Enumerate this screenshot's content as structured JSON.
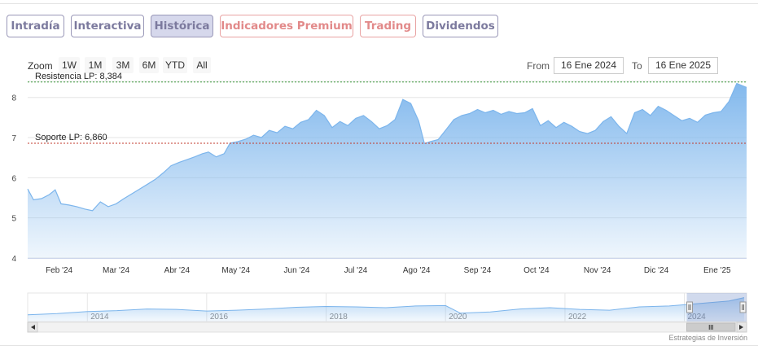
{
  "tabs": [
    {
      "label": "Intradía",
      "style": "normal"
    },
    {
      "label": "Interactiva",
      "style": "normal"
    },
    {
      "label": "Histórica",
      "style": "active"
    },
    {
      "label": "Indicadores Premium",
      "style": "premium"
    },
    {
      "label": "Trading",
      "style": "premium"
    },
    {
      "label": "Dividendos",
      "style": "normal"
    }
  ],
  "zoom": {
    "label": "Zoom",
    "buttons": [
      "1W",
      "1M",
      "3M",
      "6M",
      "YTD",
      "All"
    ]
  },
  "range": {
    "from_label": "From",
    "from_value": "16 Ene 2024",
    "to_label": "To",
    "to_value": "16 Ene 2025"
  },
  "credit": "Estrategias de Inversión",
  "colors": {
    "tab_border": "#9a98b8",
    "tab_text": "#7c7a9e",
    "premium": "#e28a8a",
    "area_line": "#7cb5ec",
    "resistance": "#3a9a3a",
    "support": "#c0392b"
  },
  "chart_data": {
    "type": "area",
    "ylim": [
      4,
      8.4
    ],
    "y_ticks": [
      "4",
      "5",
      "6",
      "7",
      "8"
    ],
    "x_tick_labels": [
      "Feb '24",
      "Mar '24",
      "Abr '24",
      "May '24",
      "Jun '24",
      "Jul '24",
      "Ago '24",
      "Sep '24",
      "Oct '24",
      "Nov '24",
      "Dic '24",
      "Ene '25"
    ],
    "date_range": [
      "2024-01-16",
      "2025-01-16"
    ],
    "series": [
      {
        "points": [
          [
            "2024-01-16",
            5.72
          ],
          [
            "2024-01-19",
            5.45
          ],
          [
            "2024-01-23",
            5.48
          ],
          [
            "2024-01-27",
            5.58
          ],
          [
            "2024-01-30",
            5.7
          ],
          [
            "2024-02-02",
            5.35
          ],
          [
            "2024-02-06",
            5.32
          ],
          [
            "2024-02-10",
            5.28
          ],
          [
            "2024-02-14",
            5.22
          ],
          [
            "2024-02-18",
            5.18
          ],
          [
            "2024-02-22",
            5.4
          ],
          [
            "2024-02-26",
            5.28
          ],
          [
            "2024-03-01",
            5.35
          ],
          [
            "2024-03-05",
            5.48
          ],
          [
            "2024-03-09",
            5.6
          ],
          [
            "2024-03-13",
            5.72
          ],
          [
            "2024-03-17",
            5.84
          ],
          [
            "2024-03-21",
            5.96
          ],
          [
            "2024-03-25",
            6.12
          ],
          [
            "2024-03-29",
            6.3
          ],
          [
            "2024-04-02",
            6.38
          ],
          [
            "2024-04-06",
            6.45
          ],
          [
            "2024-04-10",
            6.52
          ],
          [
            "2024-04-14",
            6.6
          ],
          [
            "2024-04-17",
            6.64
          ],
          [
            "2024-04-21",
            6.52
          ],
          [
            "2024-04-25",
            6.6
          ],
          [
            "2024-04-28",
            6.86
          ],
          [
            "2024-05-02",
            6.9
          ],
          [
            "2024-05-06",
            6.96
          ],
          [
            "2024-05-10",
            7.06
          ],
          [
            "2024-05-14",
            7.0
          ],
          [
            "2024-05-18",
            7.18
          ],
          [
            "2024-05-22",
            7.12
          ],
          [
            "2024-05-26",
            7.28
          ],
          [
            "2024-05-30",
            7.22
          ],
          [
            "2024-06-03",
            7.38
          ],
          [
            "2024-06-07",
            7.45
          ],
          [
            "2024-06-11",
            7.68
          ],
          [
            "2024-06-15",
            7.55
          ],
          [
            "2024-06-19",
            7.25
          ],
          [
            "2024-06-23",
            7.4
          ],
          [
            "2024-06-27",
            7.3
          ],
          [
            "2024-07-01",
            7.48
          ],
          [
            "2024-07-05",
            7.55
          ],
          [
            "2024-07-09",
            7.4
          ],
          [
            "2024-07-13",
            7.22
          ],
          [
            "2024-07-17",
            7.3
          ],
          [
            "2024-07-21",
            7.45
          ],
          [
            "2024-07-25",
            7.95
          ],
          [
            "2024-07-29",
            7.85
          ],
          [
            "2024-08-02",
            7.42
          ],
          [
            "2024-08-05",
            6.85
          ],
          [
            "2024-08-08",
            6.9
          ],
          [
            "2024-08-12",
            6.95
          ],
          [
            "2024-08-16",
            7.2
          ],
          [
            "2024-08-20",
            7.45
          ],
          [
            "2024-08-24",
            7.55
          ],
          [
            "2024-08-28",
            7.6
          ],
          [
            "2024-09-01",
            7.7
          ],
          [
            "2024-09-05",
            7.62
          ],
          [
            "2024-09-09",
            7.68
          ],
          [
            "2024-09-13",
            7.58
          ],
          [
            "2024-09-17",
            7.65
          ],
          [
            "2024-09-21",
            7.6
          ],
          [
            "2024-09-25",
            7.62
          ],
          [
            "2024-09-29",
            7.72
          ],
          [
            "2024-10-03",
            7.3
          ],
          [
            "2024-10-07",
            7.42
          ],
          [
            "2024-10-11",
            7.25
          ],
          [
            "2024-10-15",
            7.38
          ],
          [
            "2024-10-19",
            7.28
          ],
          [
            "2024-10-23",
            7.15
          ],
          [
            "2024-10-27",
            7.1
          ],
          [
            "2024-10-31",
            7.18
          ],
          [
            "2024-11-04",
            7.4
          ],
          [
            "2024-11-08",
            7.52
          ],
          [
            "2024-11-12",
            7.28
          ],
          [
            "2024-11-16",
            7.1
          ],
          [
            "2024-11-20",
            7.62
          ],
          [
            "2024-11-24",
            7.7
          ],
          [
            "2024-11-28",
            7.55
          ],
          [
            "2024-12-02",
            7.78
          ],
          [
            "2024-12-06",
            7.68
          ],
          [
            "2024-12-10",
            7.55
          ],
          [
            "2024-12-14",
            7.42
          ],
          [
            "2024-12-18",
            7.48
          ],
          [
            "2024-12-22",
            7.38
          ],
          [
            "2024-12-26",
            7.56
          ],
          [
            "2024-12-30",
            7.62
          ],
          [
            "2025-01-03",
            7.65
          ],
          [
            "2025-01-07",
            7.9
          ],
          [
            "2025-01-11",
            8.35
          ],
          [
            "2025-01-16",
            8.25
          ]
        ]
      }
    ],
    "plot_lines": [
      {
        "label": "Resistencia LP: 8,384",
        "value": 8.384
      },
      {
        "label": "Soporte LP: 6,860",
        "value": 6.86
      }
    ],
    "navigator": {
      "x_tick_labels": [
        "2014",
        "2016",
        "2018",
        "2020",
        "2022",
        "2024"
      ],
      "range": [
        "2013-01-01",
        "2025-01-16"
      ],
      "selected_range": [
        "2024-01-16",
        "2025-01-16"
      ],
      "points": [
        [
          "2013-01",
          4.2
        ],
        [
          "2013-07",
          4.5
        ],
        [
          "2014-01",
          5.0
        ],
        [
          "2014-07",
          5.2
        ],
        [
          "2015-01",
          5.6
        ],
        [
          "2015-07",
          5.5
        ],
        [
          "2016-01",
          5.1
        ],
        [
          "2016-07",
          5.3
        ],
        [
          "2017-01",
          5.6
        ],
        [
          "2017-07",
          6.0
        ],
        [
          "2018-01",
          6.2
        ],
        [
          "2018-07",
          6.1
        ],
        [
          "2019-01",
          5.9
        ],
        [
          "2019-07",
          6.3
        ],
        [
          "2020-01",
          6.4
        ],
        [
          "2020-04",
          4.6
        ],
        [
          "2020-10",
          4.9
        ],
        [
          "2021-04",
          5.6
        ],
        [
          "2021-10",
          5.9
        ],
        [
          "2022-04",
          5.5
        ],
        [
          "2022-10",
          5.3
        ],
        [
          "2023-04",
          6.1
        ],
        [
          "2023-10",
          6.3
        ],
        [
          "2024-04",
          6.9
        ],
        [
          "2024-10",
          7.5
        ],
        [
          "2025-01",
          8.3
        ]
      ]
    }
  }
}
